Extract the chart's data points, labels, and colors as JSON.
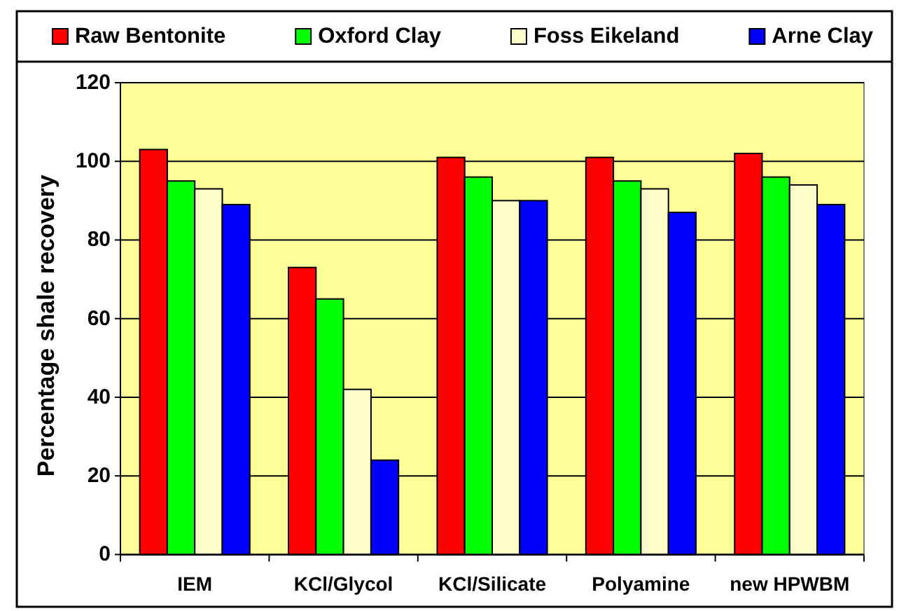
{
  "chart_data": {
    "type": "bar",
    "ylabel": "Percentage shale recovery",
    "categories": [
      "IEM",
      "KCl/Glycol",
      "KCl/Silicate",
      "Polyamine",
      "new HPWBM"
    ],
    "series": [
      {
        "name": "Raw Bentonite",
        "color": "#ff0000",
        "values": [
          103,
          73,
          101,
          101,
          102
        ]
      },
      {
        "name": "Oxford Clay",
        "color": "#00ff00",
        "values": [
          95,
          65,
          96,
          95,
          96
        ]
      },
      {
        "name": "Foss Eikeland",
        "color": "#ffffcc",
        "values": [
          93,
          42,
          90,
          93,
          94
        ]
      },
      {
        "name": "Arne Clay",
        "color": "#0000ff",
        "values": [
          89,
          24,
          90,
          87,
          89
        ]
      }
    ],
    "ylim": [
      0,
      120
    ],
    "yticks": [
      0,
      20,
      40,
      60,
      80,
      100,
      120
    ],
    "grid": "y",
    "legend": "top"
  }
}
